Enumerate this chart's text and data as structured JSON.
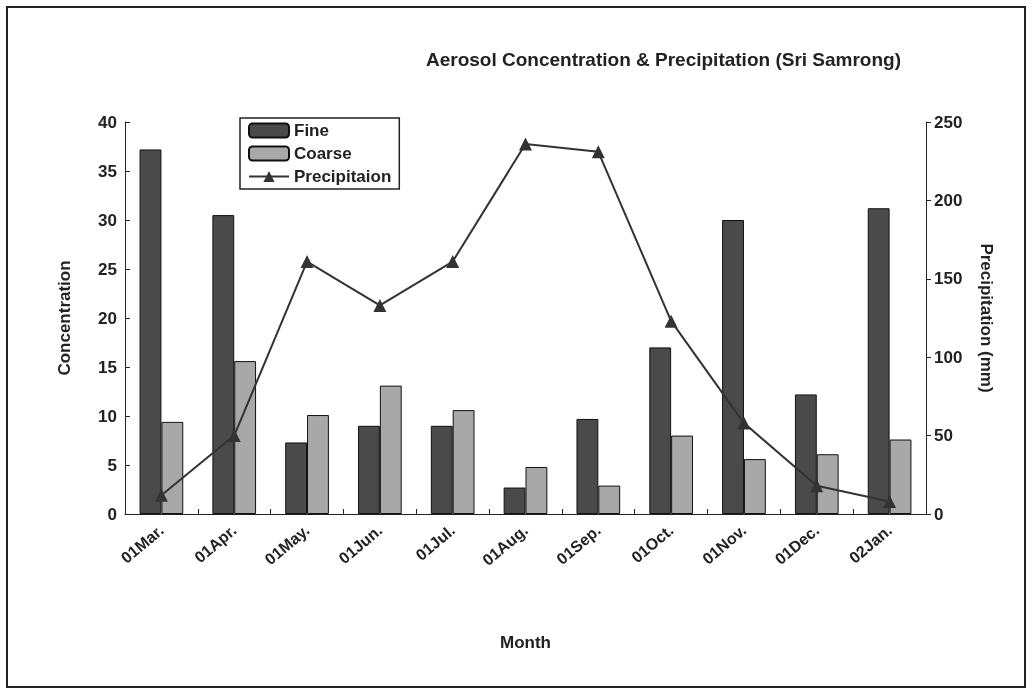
{
  "chart_data": {
    "type": "bar",
    "title": "Aerosol Concentration & Precipitation (Sri Samrong)",
    "xlabel": "Month",
    "ylabel": "Concentration",
    "y2label": "Precipitation (mm)",
    "categories": [
      "01Mar.",
      "01Apr.",
      "01May.",
      "01Jun.",
      "01Jul.",
      "01Aug.",
      "01Sep.",
      "01Oct.",
      "01Nov.",
      "01Dec.",
      "02Jan."
    ],
    "series": [
      {
        "name": "Fine",
        "color": "#4a4a4a",
        "values": [
          37.2,
          30.5,
          7.3,
          9.0,
          9.0,
          2.7,
          9.7,
          17.0,
          30.0,
          12.2,
          31.2
        ]
      },
      {
        "name": "Coarse",
        "color": "#a8a8a8",
        "values": [
          9.4,
          15.6,
          10.1,
          13.1,
          10.6,
          4.8,
          2.9,
          8.0,
          5.6,
          6.1,
          7.6
        ]
      },
      {
        "name": "Precipitaion",
        "type": "line",
        "axis": "y2",
        "color": "#333333",
        "marker": "triangle",
        "values": [
          12,
          50,
          161,
          133,
          161,
          236,
          231,
          123,
          58,
          18,
          8
        ]
      }
    ],
    "ylim": [
      0,
      40
    ],
    "yticks": [
      0,
      5,
      10,
      15,
      20,
      25,
      30,
      35,
      40
    ],
    "y2lim": [
      0,
      250
    ],
    "y2ticks": [
      0,
      50,
      100,
      150,
      200,
      250
    ],
    "grid": false,
    "legend": "top left"
  }
}
